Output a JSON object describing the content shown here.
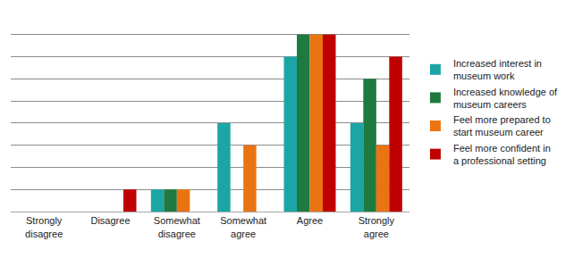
{
  "chart_data": {
    "type": "bar",
    "categories": [
      "Strongly disagree",
      "Disagree",
      "Somewhat disagree",
      "Somewhat agree",
      "Agree",
      "Strongly agree"
    ],
    "series": [
      {
        "name": "Increased interest in museum work",
        "color": "#1ba5a5",
        "values": [
          0,
          0,
          1,
          4,
          7,
          4
        ]
      },
      {
        "name": "Increased knowledge of museum careers",
        "color": "#1e7a3e",
        "values": [
          0,
          0,
          1,
          0,
          8,
          6
        ]
      },
      {
        "name": "Feel more prepared to start museum career",
        "color": "#ea7411",
        "values": [
          0,
          0,
          1,
          3,
          8,
          3
        ]
      },
      {
        "name": "Feel more confident in a professional setting",
        "color": "#c00000",
        "values": [
          0,
          1,
          0,
          0,
          8,
          7
        ]
      }
    ],
    "ylim": [
      0,
      9
    ],
    "yticks": [
      0,
      1,
      2,
      3,
      4,
      5,
      6,
      7,
      8,
      9
    ],
    "grid": true,
    "legend": "right",
    "tick_labels": "x"
  }
}
